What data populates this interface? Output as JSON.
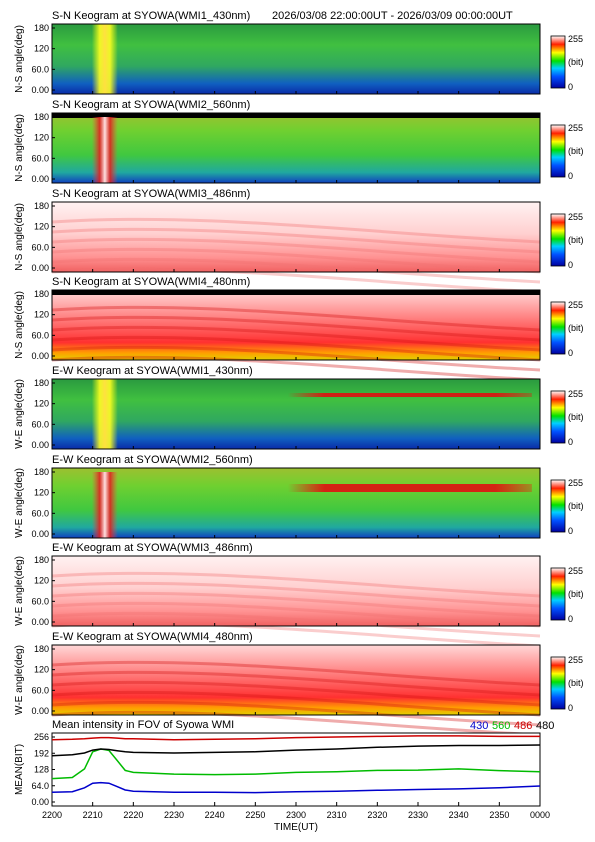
{
  "header": {
    "time_range": "2026/03/08 22:00:00UT - 2026/03/09 00:00:00UT"
  },
  "colorbar": {
    "max_label": "255",
    "unit_label": "(bit)",
    "min_label": "0"
  },
  "colors": {
    "c430": "#0000cc",
    "c560": "#00bb00",
    "c486": "#cc0000",
    "c480": "#000000"
  },
  "keograms": [
    {
      "title": "S-N Keogram at SYOWA(WMI1_430nm)",
      "ylabel": "N-S angle(deg)",
      "yticks": [
        "180",
        "120",
        "60.0",
        "0.00"
      ],
      "base": "green",
      "arc_time": 2213
    },
    {
      "title": "S-N Keogram at SYOWA(WMI2_560nm)",
      "ylabel": "N-S angle(deg)",
      "yticks": [
        "180",
        "120",
        "60.0",
        "0.00"
      ],
      "base": "green",
      "arc_time": 2213
    },
    {
      "title": "S-N Keogram at SYOWA(WMI3_486nm)",
      "ylabel": "N-S angle(deg)",
      "yticks": [
        "180",
        "120",
        "60.0",
        "0.00"
      ],
      "base": "white-red",
      "arc_time": null
    },
    {
      "title": "S-N Keogram at SYOWA(WMI4_480nm)",
      "ylabel": "N-S angle(deg)",
      "yticks": [
        "180",
        "120",
        "60.0",
        "0.00"
      ],
      "base": "red",
      "arc_time": null
    },
    {
      "title": "E-W Keogram at SYOWA(WMI1_430nm)",
      "ylabel": "W-E angle(deg)",
      "yticks": [
        "180",
        "120",
        "60.0",
        "0.00"
      ],
      "base": "green",
      "arc_time": 2213
    },
    {
      "title": "E-W Keogram at SYOWA(WMI2_560nm)",
      "ylabel": "W-E angle(deg)",
      "yticks": [
        "180",
        "120",
        "60.0",
        "0.00"
      ],
      "base": "green",
      "arc_time": 2213
    },
    {
      "title": "E-W Keogram at SYOWA(WMI3_486nm)",
      "ylabel": "W-E angle(deg)",
      "yticks": [
        "180",
        "120",
        "60.0",
        "0.00"
      ],
      "base": "white-red",
      "arc_time": null
    },
    {
      "title": "E-W Keogram at SYOWA(WMI4_480nm)",
      "ylabel": "W-E angle(deg)",
      "yticks": [
        "180",
        "120",
        "60.0",
        "0.00"
      ],
      "base": "red",
      "arc_time": null
    }
  ],
  "chart_data": {
    "type": "line",
    "title": "Mean intensity in FOV of Syowa WMI",
    "xlabel": "TIME(UT)",
    "ylabel": "MEAN(BIT)",
    "xticks": [
      "2200",
      "2210",
      "2220",
      "2230",
      "2240",
      "2250",
      "2300",
      "2310",
      "2320",
      "2330",
      "2340",
      "2350",
      "0000"
    ],
    "yticks": [
      "256",
      "192",
      "128",
      "64.0",
      "0.00"
    ],
    "ylim": [
      0,
      256
    ],
    "x_minutes": [
      0,
      5,
      8,
      10,
      12,
      14,
      16,
      18,
      20,
      30,
      40,
      50,
      60,
      70,
      80,
      90,
      100,
      110,
      120
    ],
    "series": [
      {
        "name": "430",
        "color": "#0000cc",
        "values": [
          48,
          50,
          64,
          80,
          82,
          80,
          68,
          56,
          52,
          48,
          48,
          47,
          50,
          52,
          55,
          58,
          60,
          64,
          70
        ]
      },
      {
        "name": "560",
        "color": "#00bb00",
        "values": [
          96,
          100,
          130,
          190,
          200,
          195,
          160,
          125,
          118,
          112,
          110,
          112,
          118,
          120,
          125,
          126,
          130,
          124,
          120
        ]
      },
      {
        "name": "486",
        "color": "#cc0000",
        "values": [
          232,
          234,
          236,
          238,
          240,
          240,
          238,
          236,
          236,
          232,
          234,
          236,
          240,
          242,
          244,
          246,
          246,
          244,
          244
        ]
      },
      {
        "name": "480",
        "color": "#000000",
        "values": [
          176,
          180,
          186,
          196,
          200,
          198,
          194,
          190,
          188,
          186,
          188,
          190,
          196,
          200,
          206,
          210,
          212,
          212,
          214
        ]
      }
    ]
  }
}
